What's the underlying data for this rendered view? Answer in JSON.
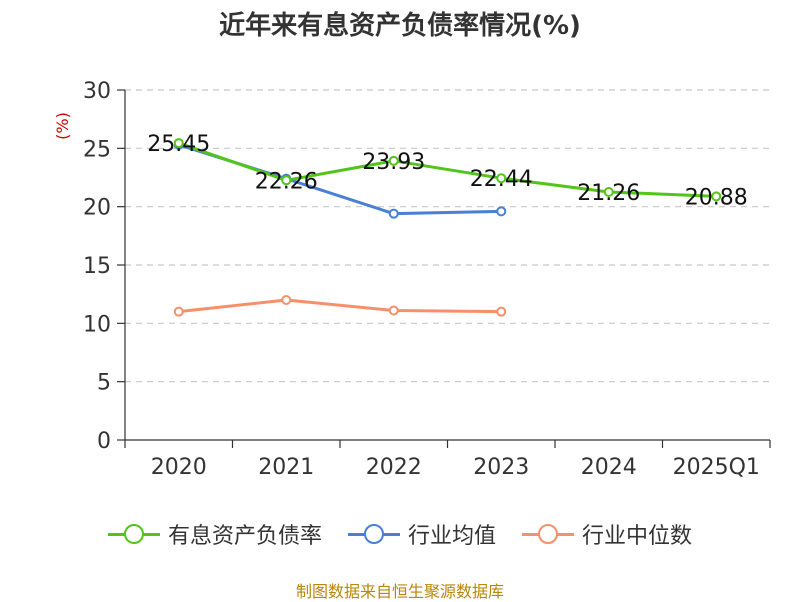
{
  "title": "近年来有息资产负债率情况(%)",
  "footer": "制图数据来自恒生聚源数据库",
  "chart_data": {
    "type": "line",
    "categories": [
      "2020",
      "2021",
      "2022",
      "2023",
      "2024",
      "2025Q1"
    ],
    "ylabel": "(%)",
    "ylim": [
      0,
      30
    ],
    "yticks": [
      0,
      5,
      10,
      15,
      20,
      25,
      30
    ],
    "grid": true,
    "legend_position": "bottom",
    "series": [
      {
        "name": "有息资产负债率",
        "color": "#52c41a",
        "values": [
          25.45,
          22.26,
          23.93,
          22.44,
          21.26,
          20.88
        ],
        "labels": [
          "25.45",
          "22.26",
          "23.93",
          "22.44",
          "21.26",
          "20.88"
        ]
      },
      {
        "name": "行业均值",
        "color": "#4a7fd6",
        "values": [
          25.3,
          22.4,
          19.4,
          19.6,
          null,
          null
        ]
      },
      {
        "name": "行业中位数",
        "color": "#f4906a",
        "values": [
          11.0,
          12.0,
          11.1,
          11.0,
          null,
          null
        ]
      }
    ]
  }
}
